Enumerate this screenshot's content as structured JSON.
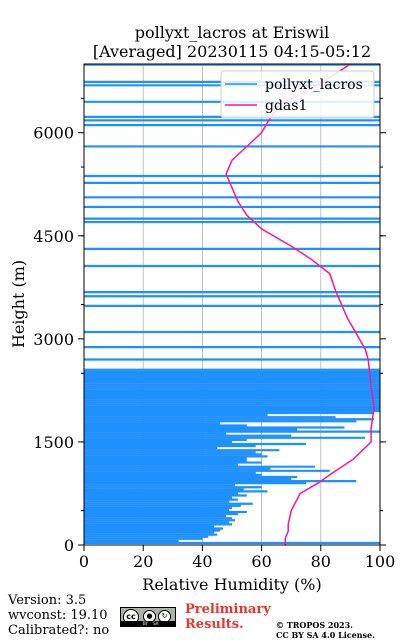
{
  "chart_data": {
    "type": "line",
    "title": "pollyxt_lacros at Eriswil",
    "subtitle": "[Averaged] 20230115 04:15-05:12",
    "xlabel": "Relative Humidity (%)",
    "ylabel": "Height (m)",
    "xlim": [
      0,
      100
    ],
    "ylim": [
      0,
      7000
    ],
    "xticks": [
      "0",
      "20",
      "40",
      "60",
      "80",
      "100"
    ],
    "yticks": [
      "0",
      "1500",
      "3000",
      "4500",
      "6000"
    ],
    "grid": "vertical",
    "legend": "top-right",
    "series": [
      {
        "name": "pollyxt_lacros",
        "color": "#1e90ff",
        "x": [
          100,
          32,
          40,
          42,
          45,
          44,
          46,
          47,
          44,
          50,
          49,
          51,
          50,
          48,
          52,
          55,
          49,
          50,
          53,
          57,
          49,
          52,
          50,
          55,
          52,
          62,
          54,
          60,
          51,
          75,
          92,
          70,
          72,
          60,
          58,
          83,
          63,
          78,
          52,
          60,
          55,
          55,
          62,
          60,
          58,
          66,
          45,
          58,
          75,
          50,
          55,
          95,
          70,
          48,
          100,
          72,
          88,
          55,
          46,
          92,
          98,
          85,
          62,
          98,
          100,
          100,
          100,
          100,
          100,
          100,
          100,
          100,
          100,
          100,
          100,
          100,
          100,
          100,
          100,
          100,
          100,
          100,
          100,
          100,
          100,
          100,
          100,
          100,
          100,
          100,
          100,
          100,
          100,
          100,
          100,
          100,
          100,
          100,
          100,
          100,
          100,
          100,
          100,
          100,
          100,
          100,
          100
        ],
        "y": [
          30,
          60,
          90,
          120,
          150,
          180,
          210,
          240,
          270,
          300,
          330,
          360,
          390,
          420,
          450,
          480,
          510,
          540,
          570,
          600,
          630,
          660,
          690,
          720,
          750,
          780,
          810,
          840,
          870,
          900,
          930,
          960,
          990,
          1020,
          1050,
          1080,
          1110,
          1140,
          1170,
          1200,
          1230,
          1260,
          1290,
          1320,
          1350,
          1380,
          1410,
          1440,
          1470,
          1500,
          1530,
          1560,
          1590,
          1620,
          1650,
          1680,
          1710,
          1740,
          1770,
          1800,
          1830,
          1860,
          1890,
          1920,
          1950,
          1980,
          2010,
          2040,
          2070,
          2100,
          2130,
          2160,
          2190,
          2220,
          2250,
          2280,
          2310,
          2340,
          2370,
          2400,
          2430,
          2460,
          2490,
          2520,
          2550,
          2700,
          2880,
          3100,
          3480,
          3620,
          3680,
          4060,
          4310,
          4700,
          4750,
          4920,
          5060,
          5270,
          5370,
          5800,
          6110,
          6180,
          6230,
          6450,
          6690,
          6740,
          6990
        ]
      },
      {
        "name": "gdas1",
        "color": "#ff1493",
        "x": [
          68,
          68,
          69,
          69,
          70,
          73,
          79,
          84,
          91,
          97,
          97,
          98,
          97,
          96,
          95,
          93,
          91,
          89,
          87,
          85,
          83,
          77,
          70,
          60,
          55,
          52,
          48,
          50,
          55,
          60,
          62,
          66,
          75,
          83,
          90
        ],
        "y": [
          0,
          100,
          200,
          300,
          500,
          750,
          900,
          1050,
          1250,
          1500,
          1700,
          2000,
          2300,
          2700,
          2850,
          3000,
          3150,
          3300,
          3500,
          3700,
          3950,
          4150,
          4350,
          4600,
          4800,
          5000,
          5400,
          5600,
          5800,
          6000,
          6150,
          6400,
          6600,
          6800,
          7000
        ]
      }
    ]
  },
  "footer": {
    "version": "Version: 3.5",
    "wvconst": "wvconst:  19.10",
    "calibrated": "Calibrated?: no",
    "preliminary_1": "Preliminary",
    "preliminary_2": "Results.",
    "copyright_1": "© TROPOS 2023.",
    "copyright_2": "CC BY SA 4.0 License.",
    "badge": {
      "cc": "cc",
      "by": "BY",
      "sa": "SA"
    }
  }
}
